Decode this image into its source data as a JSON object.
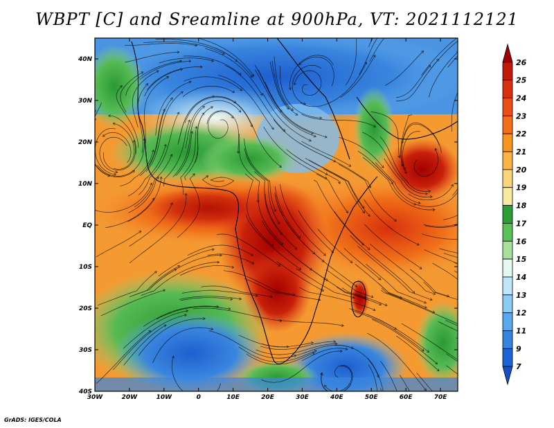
{
  "title": "WBPT [C] and Sreamline at 900hPa, VT: 2021112121",
  "credit": "GrADS: IGES/COLA",
  "map": {
    "lat_labels": [
      "40N",
      "30N",
      "20N",
      "10N",
      "EQ",
      "10S",
      "20S",
      "30S",
      "40S"
    ],
    "lat_values": [
      40,
      30,
      20,
      10,
      0,
      -10,
      -20,
      -30,
      -40
    ],
    "lon_labels": [
      "30W",
      "20W",
      "10W",
      "0",
      "10E",
      "20E",
      "30E",
      "40E",
      "50E",
      "60E",
      "70E"
    ],
    "lon_values": [
      -30,
      -20,
      -10,
      0,
      10,
      20,
      30,
      40,
      50,
      60,
      70
    ],
    "lon_range": [
      -30,
      75
    ],
    "lat_range": [
      -40,
      45
    ]
  },
  "colorbar": {
    "labels": [
      "26",
      "25",
      "24",
      "23",
      "22",
      "21",
      "20",
      "19",
      "18",
      "17",
      "16",
      "15",
      "14",
      "13",
      "12",
      "11",
      "9",
      "7"
    ],
    "colors": [
      "#a00000",
      "#c21a08",
      "#d8300e",
      "#ea4e14",
      "#f2701a",
      "#f7951e",
      "#f9b445",
      "#fad57c",
      "#f8eaa0",
      "#2c9e36",
      "#5cc058",
      "#a8e09a",
      "#e4f8f0",
      "#bde6fa",
      "#8ccbf4",
      "#5aa8ea",
      "#3484e0",
      "#1d63d6",
      "#1450c8"
    ]
  }
}
